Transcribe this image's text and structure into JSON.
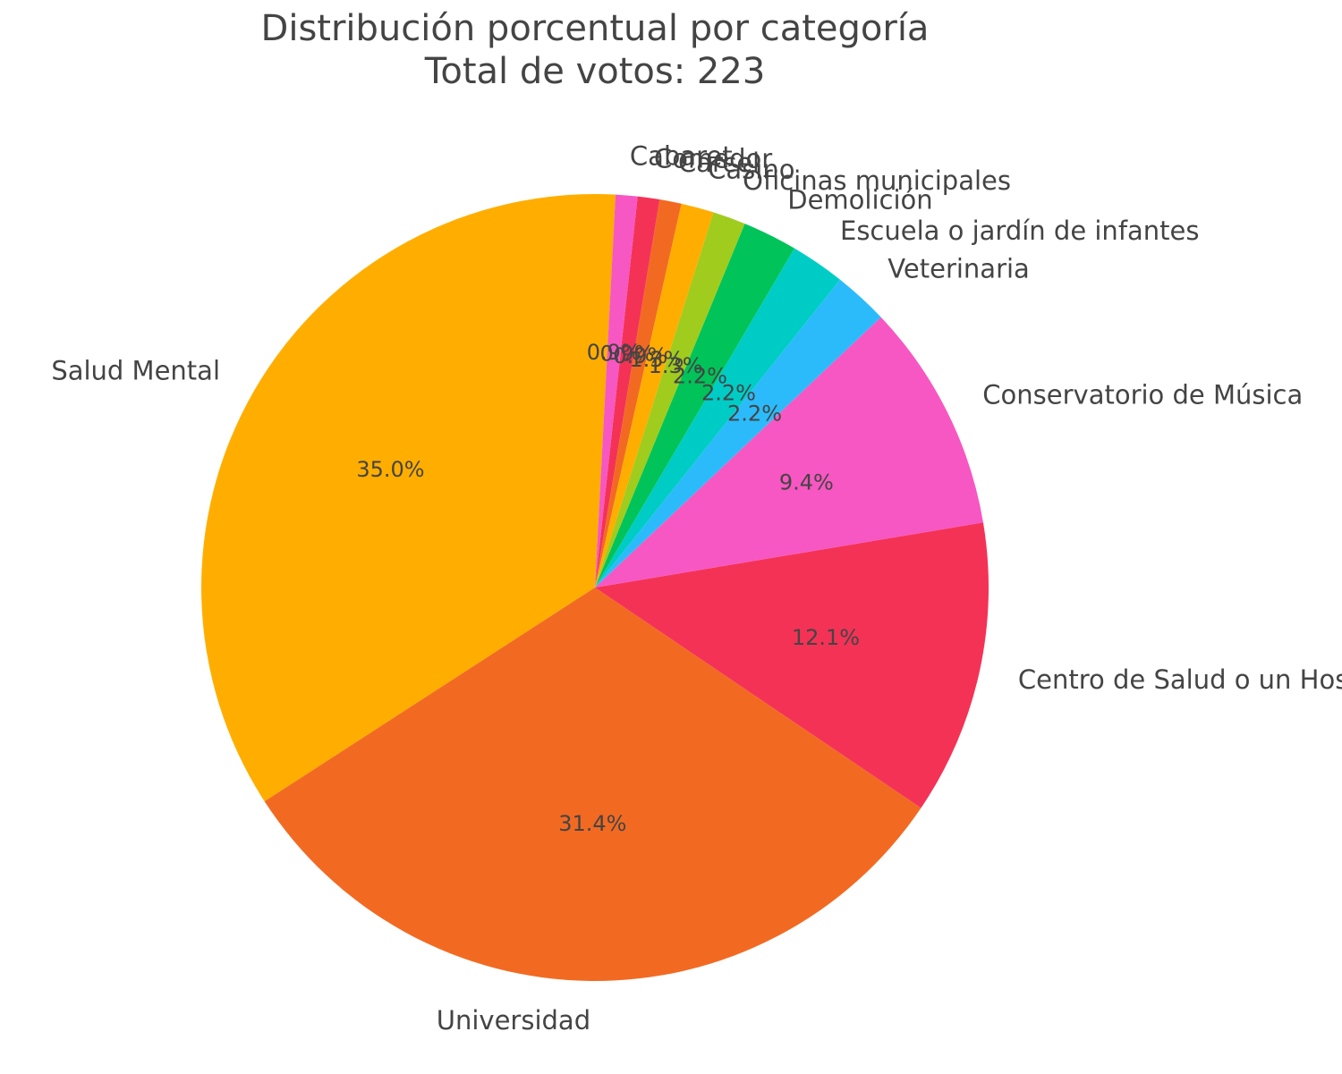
{
  "chart_data": {
    "type": "pie",
    "title": "Distribución porcentual por categoría",
    "subtitle": "Total de votos: 223",
    "total": 223,
    "start_angle_deg": 87,
    "direction": "counterclockwise",
    "slices": [
      {
        "label": "Salud Mental",
        "value": 78,
        "pct_label": "35.0%",
        "color": "#FFAE00"
      },
      {
        "label": "Universidad",
        "value": 70,
        "pct_label": "31.4%",
        "color": "#F26A22"
      },
      {
        "label": "Centro de Salud o un Hospital",
        "value": 27,
        "pct_label": "12.1%",
        "color": "#F43256"
      },
      {
        "label": "Conservatorio de Música",
        "value": 21,
        "pct_label": "9.4%",
        "color": "#F757C2"
      },
      {
        "label": "Veterinaria",
        "value": 5,
        "pct_label": "2.2%",
        "color": "#2BBBFB"
      },
      {
        "label": "Escuela o jardín de infantes",
        "value": 5,
        "pct_label": "2.2%",
        "color": "#00CCC6"
      },
      {
        "label": "Demolición",
        "value": 5,
        "pct_label": "2.2%",
        "color": "#00C359"
      },
      {
        "label": "Oficinas municipales",
        "value": 3,
        "pct_label": "1.3%",
        "color": "#A0CC1E"
      },
      {
        "label": "Casino",
        "value": 3,
        "pct_label": "1.3%",
        "color": "#FFAE00"
      },
      {
        "label": "Carcel",
        "value": 2,
        "pct_label": "0.9%",
        "color": "#F26A22"
      },
      {
        "label": "Comedor",
        "value": 2,
        "pct_label": "0.9%",
        "color": "#F43256"
      },
      {
        "label": "Cabaret",
        "value": 2,
        "pct_label": "0.9%",
        "color": "#F757C2"
      }
    ]
  }
}
